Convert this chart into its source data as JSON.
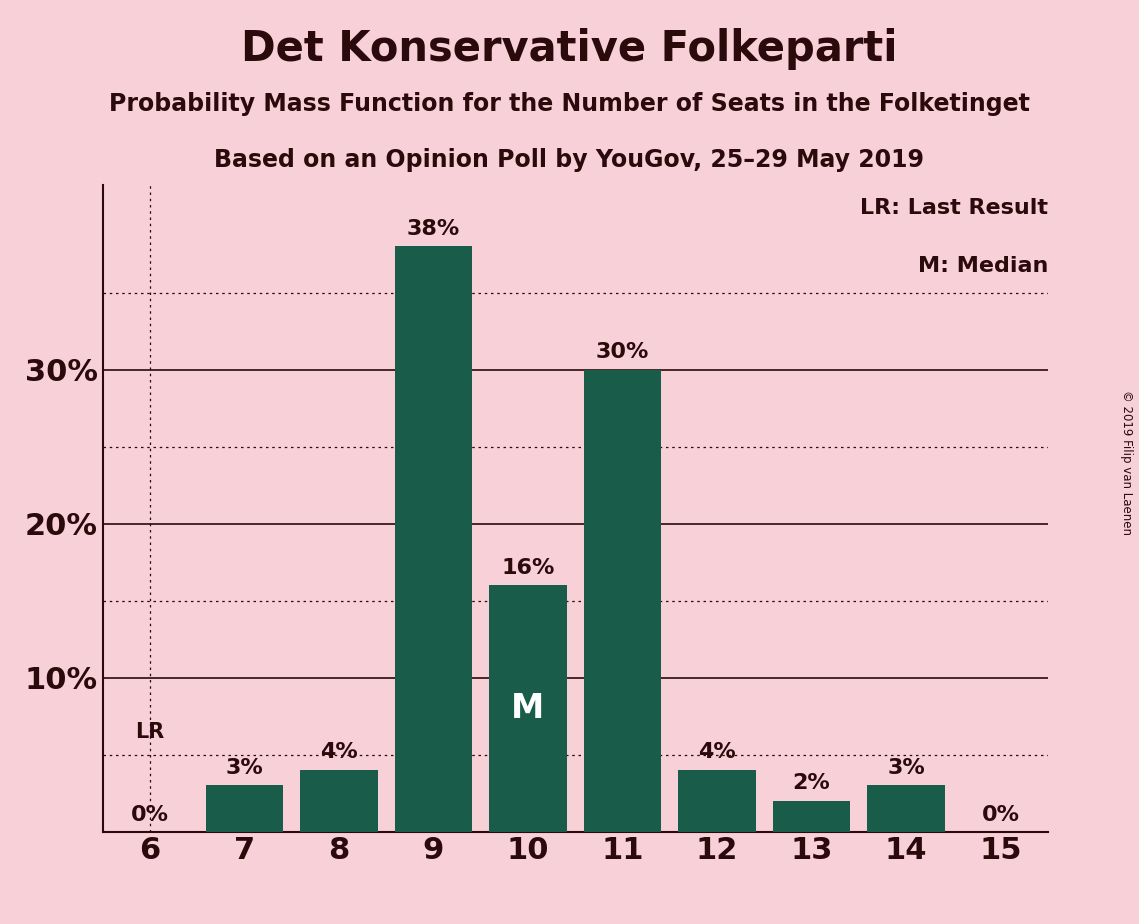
{
  "title": "Det Konservative Folkeparti",
  "subtitle1": "Probability Mass Function for the Number of Seats in the Folketinget",
  "subtitle2": "Based on an Opinion Poll by YouGov, 25–29 May 2019",
  "copyright": "© 2019 Filip van Laenen",
  "categories": [
    6,
    7,
    8,
    9,
    10,
    11,
    12,
    13,
    14,
    15
  ],
  "values": [
    0,
    3,
    4,
    38,
    16,
    30,
    4,
    2,
    3,
    0
  ],
  "bar_color": "#1a5c4a",
  "background_color": "#f8d0d8",
  "text_color": "#2a0a0a",
  "legend_text": [
    "LR: Last Result",
    "M: Median"
  ],
  "lr_seat": 6,
  "median_seat": 10,
  "ylim": [
    0,
    42
  ],
  "solid_gridlines": [
    0,
    10,
    20,
    30
  ],
  "dotted_gridlines": [
    5,
    15,
    25,
    35
  ],
  "ytick_positions": [
    0,
    10,
    20,
    30
  ],
  "ytick_labels": [
    "",
    "10%",
    "20%",
    "30%"
  ]
}
